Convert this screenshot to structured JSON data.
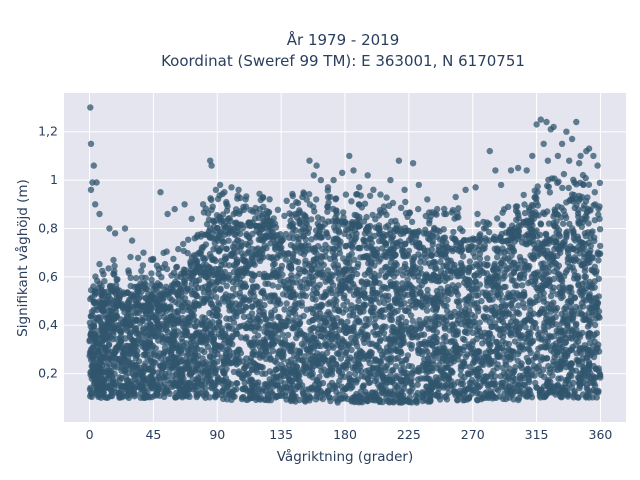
{
  "chart_data": {
    "type": "scatter",
    "title_line1": "År 1979 - 2019",
    "title_line2": "Koordinat (Sweref 99 TM): E 363001, N 6170751",
    "xlabel": "Vågriktning (grader)",
    "ylabel": "Signifikant våghöjd (m)",
    "xlim": [
      -18,
      378
    ],
    "ylim": [
      0.0,
      1.36
    ],
    "x_ticks": [
      0,
      45,
      90,
      135,
      180,
      225,
      270,
      315,
      360
    ],
    "x_tick_labels": [
      "0",
      "45",
      "90",
      "135",
      "180",
      "225",
      "270",
      "315",
      "360"
    ],
    "y_ticks": [
      0.2,
      0.4,
      0.6,
      0.8,
      1.0,
      1.2
    ],
    "y_tick_labels": [
      "0,2",
      "0,4",
      "0,6",
      "0,8",
      "1",
      "1,2"
    ],
    "grid": true,
    "marker_color": "#30566d",
    "plot_background": "#e5e5f0",
    "grid_color": "#ffffff",
    "series": [
      {
        "density_envelope": {
          "direction": [
            0,
            20,
            40,
            60,
            75,
            85,
            100,
            130,
            155,
            175,
            200,
            230,
            260,
            285,
            300,
            320,
            340,
            360
          ],
          "bulk_min_height": [
            0.1,
            0.1,
            0.1,
            0.1,
            0.1,
            0.1,
            0.09,
            0.09,
            0.08,
            0.08,
            0.08,
            0.08,
            0.09,
            0.09,
            0.09,
            0.1,
            0.1,
            0.1
          ],
          "bulk_max_height": [
            0.52,
            0.55,
            0.55,
            0.58,
            0.65,
            0.8,
            0.82,
            0.8,
            0.82,
            0.83,
            0.8,
            0.78,
            0.75,
            0.75,
            0.8,
            0.86,
            0.92,
            0.85
          ]
        },
        "points": [
          {
            "x": 0.5,
            "y": 1.3
          },
          {
            "x": 1,
            "y": 1.15
          },
          {
            "x": 3,
            "y": 1.06
          },
          {
            "x": 2,
            "y": 0.99
          },
          {
            "x": 5,
            "y": 0.99
          },
          {
            "x": 1,
            "y": 0.96
          },
          {
            "x": 4,
            "y": 0.9
          },
          {
            "x": 7,
            "y": 0.86
          },
          {
            "x": 14,
            "y": 0.8
          },
          {
            "x": 18,
            "y": 0.78
          },
          {
            "x": 25,
            "y": 0.8
          },
          {
            "x": 30,
            "y": 0.75
          },
          {
            "x": 38,
            "y": 0.7
          },
          {
            "x": 50,
            "y": 0.95
          },
          {
            "x": 55,
            "y": 0.86
          },
          {
            "x": 60,
            "y": 0.88
          },
          {
            "x": 67,
            "y": 0.9
          },
          {
            "x": 72,
            "y": 0.84
          },
          {
            "x": 80,
            "y": 0.9
          },
          {
            "x": 85,
            "y": 1.08
          },
          {
            "x": 86,
            "y": 1.06
          },
          {
            "x": 89,
            "y": 0.96
          },
          {
            "x": 92,
            "y": 0.98
          },
          {
            "x": 95,
            "y": 0.95
          },
          {
            "x": 100,
            "y": 0.97
          },
          {
            "x": 105,
            "y": 0.96
          },
          {
            "x": 110,
            "y": 0.92
          },
          {
            "x": 115,
            "y": 0.87
          },
          {
            "x": 120,
            "y": 0.88
          },
          {
            "x": 128,
            "y": 0.83
          },
          {
            "x": 145,
            "y": 0.86
          },
          {
            "x": 150,
            "y": 0.93
          },
          {
            "x": 155,
            "y": 1.08
          },
          {
            "x": 160,
            "y": 1.06
          },
          {
            "x": 158,
            "y": 1.02
          },
          {
            "x": 163,
            "y": 1.0
          },
          {
            "x": 168,
            "y": 0.97
          },
          {
            "x": 172,
            "y": 1.0
          },
          {
            "x": 178,
            "y": 1.03
          },
          {
            "x": 183,
            "y": 1.1
          },
          {
            "x": 186,
            "y": 1.04
          },
          {
            "x": 190,
            "y": 0.97
          },
          {
            "x": 196,
            "y": 1.02
          },
          {
            "x": 200,
            "y": 0.96
          },
          {
            "x": 205,
            "y": 0.94
          },
          {
            "x": 212,
            "y": 1.0
          },
          {
            "x": 218,
            "y": 1.08
          },
          {
            "x": 222,
            "y": 0.96
          },
          {
            "x": 228,
            "y": 1.07
          },
          {
            "x": 232,
            "y": 0.98
          },
          {
            "x": 238,
            "y": 0.92
          },
          {
            "x": 245,
            "y": 0.88
          },
          {
            "x": 250,
            "y": 0.86
          },
          {
            "x": 258,
            "y": 0.93
          },
          {
            "x": 265,
            "y": 0.96
          },
          {
            "x": 272,
            "y": 0.97
          },
          {
            "x": 282,
            "y": 1.12
          },
          {
            "x": 286,
            "y": 1.04
          },
          {
            "x": 290,
            "y": 0.98
          },
          {
            "x": 297,
            "y": 1.04
          },
          {
            "x": 302,
            "y": 1.05
          },
          {
            "x": 308,
            "y": 1.04
          },
          {
            "x": 312,
            "y": 1.1
          },
          {
            "x": 315,
            "y": 1.23
          },
          {
            "x": 318,
            "y": 1.25
          },
          {
            "x": 322,
            "y": 1.24
          },
          {
            "x": 325,
            "y": 1.21
          },
          {
            "x": 327,
            "y": 1.22
          },
          {
            "x": 320,
            "y": 1.15
          },
          {
            "x": 323,
            "y": 1.08
          },
          {
            "x": 330,
            "y": 1.1
          },
          {
            "x": 333,
            "y": 1.15
          },
          {
            "x": 336,
            "y": 1.2
          },
          {
            "x": 340,
            "y": 1.17
          },
          {
            "x": 343,
            "y": 1.24
          },
          {
            "x": 346,
            "y": 1.1
          },
          {
            "x": 350,
            "y": 1.12
          },
          {
            "x": 352,
            "y": 1.13
          },
          {
            "x": 355,
            "y": 1.1
          },
          {
            "x": 358,
            "y": 1.06
          },
          {
            "x": 338,
            "y": 1.08
          },
          {
            "x": 345,
            "y": 1.07
          },
          {
            "x": 348,
            "y": 0.98
          },
          {
            "x": 356,
            "y": 0.95
          }
        ]
      }
    ]
  }
}
